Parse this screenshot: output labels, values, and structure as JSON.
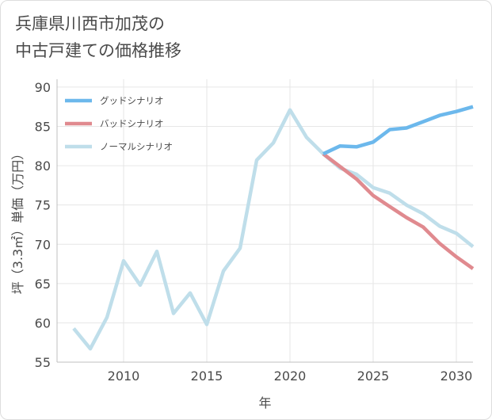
{
  "title": "兵庫県川西市加茂の\n中古戸建ての価格推移",
  "chart_data": {
    "type": "line",
    "title": "兵庫県川西市加茂の\n中古戸建ての価格推移",
    "xlabel": "年",
    "ylabel": "坪（3.3㎡）単価（万円）",
    "xlim": [
      2006,
      2031
    ],
    "ylim": [
      55,
      91
    ],
    "xticks": [
      2010,
      2015,
      2020,
      2025,
      2030
    ],
    "yticks": [
      55,
      60,
      65,
      70,
      75,
      80,
      85,
      90
    ],
    "grid": true,
    "legend_position": "top-left",
    "series": [
      {
        "name": "グッドシナリオ",
        "color": "#6cb8ec",
        "x": [
          2022,
          2023,
          2024,
          2025,
          2026,
          2027,
          2028,
          2029,
          2030,
          2031
        ],
        "y": [
          81.5,
          82.5,
          82.4,
          83.0,
          84.6,
          84.8,
          85.6,
          86.4,
          86.9,
          87.5
        ]
      },
      {
        "name": "バッドシナリオ",
        "color": "#e08a8f",
        "x": [
          2022,
          2023,
          2024,
          2025,
          2026,
          2027,
          2028,
          2029,
          2030,
          2031
        ],
        "y": [
          81.5,
          79.9,
          78.3,
          76.2,
          74.8,
          73.4,
          72.2,
          70.1,
          68.4,
          66.9
        ]
      },
      {
        "name": "ノーマルシナリオ",
        "color": "#bfdeea",
        "x": [
          2007,
          2008,
          2009,
          2010,
          2011,
          2012,
          2013,
          2014,
          2015,
          2016,
          2017,
          2018,
          2019,
          2020,
          2021,
          2022,
          2023,
          2024,
          2025,
          2026,
          2027,
          2028,
          2029,
          2030,
          2031
        ],
        "y": [
          59.3,
          56.7,
          60.7,
          67.9,
          64.8,
          69.1,
          61.2,
          63.8,
          59.8,
          66.6,
          69.5,
          80.7,
          82.9,
          87.1,
          83.6,
          81.5,
          79.7,
          78.9,
          77.2,
          76.5,
          75.0,
          73.9,
          72.3,
          71.4,
          69.7
        ]
      }
    ]
  }
}
